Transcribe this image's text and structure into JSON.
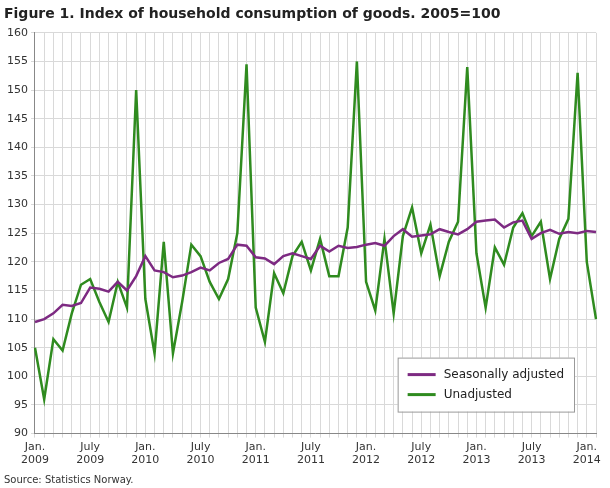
{
  "chart_data": {
    "type": "line",
    "title": "Figure 1. Index of household consumption of goods. 2005=100",
    "source": "Source: Statistics Norway.",
    "categories": [
      "Jan.\n2009",
      null,
      null,
      null,
      null,
      null,
      "July\n2009",
      null,
      null,
      null,
      null,
      null,
      "Jan.\n2010",
      null,
      null,
      null,
      null,
      null,
      "July\n2010",
      null,
      null,
      null,
      null,
      null,
      "Jan.\n2011",
      null,
      null,
      null,
      null,
      null,
      "July\n2011",
      null,
      null,
      null,
      null,
      null,
      "Jan.\n2012",
      null,
      null,
      null,
      null,
      null,
      "July\n2012",
      null,
      null,
      null,
      null,
      null,
      "Jan.\n2013",
      null,
      null,
      null,
      null,
      null,
      "July\n2013",
      null,
      null,
      null,
      null,
      null,
      "Jan.\n2014",
      null
    ],
    "series": [
      {
        "name": "Seasonally adjusted",
        "color": "#7d2a82",
        "values": [
          109.5,
          110,
          111,
          112.5,
          112.3,
          112.8,
          115.5,
          115.3,
          114.8,
          116.5,
          115,
          117.5,
          121,
          118.5,
          118.2,
          117.3,
          117.6,
          118.2,
          119,
          118.5,
          119.8,
          120.5,
          123,
          122.8,
          120.8,
          120.6,
          119.6,
          121,
          121.5,
          121,
          120.5,
          122.8,
          121.8,
          122.8,
          122.4,
          122.6,
          123,
          123.3,
          122.8,
          124.5,
          125.7,
          124.4,
          124.6,
          124.8,
          125.7,
          125.2,
          124.8,
          125.7,
          127,
          127.2,
          127.4,
          126,
          126.9,
          127.2,
          124,
          125,
          125.6,
          124.9,
          125.2,
          125,
          125.4,
          125.2
        ]
      },
      {
        "name": "Unadjusted",
        "color": "#2f8b1f",
        "values": [
          105,
          96,
          106.5,
          104.5,
          111,
          116,
          117,
          113,
          109.5,
          116.5,
          112,
          150,
          113.5,
          104,
          123.5,
          104,
          113,
          123,
          121,
          116.5,
          113.5,
          117,
          125,
          154.5,
          112,
          106,
          118,
          114.5,
          121,
          123.5,
          118.5,
          124,
          117.5,
          117.5,
          126,
          155,
          116.5,
          111.5,
          124,
          111,
          124.5,
          129.5,
          121.5,
          126.5,
          117.5,
          123.5,
          127,
          154,
          121.5,
          112,
          122.5,
          119.5,
          126,
          128.5,
          124.5,
          127,
          117,
          124,
          127.5,
          153,
          120,
          110
        ]
      }
    ],
    "ylim": [
      90,
      160
    ],
    "yticks": [
      90,
      95,
      100,
      105,
      110,
      115,
      120,
      125,
      130,
      135,
      140,
      145,
      150,
      155,
      160
    ],
    "grid": true,
    "legend": "lower right"
  }
}
